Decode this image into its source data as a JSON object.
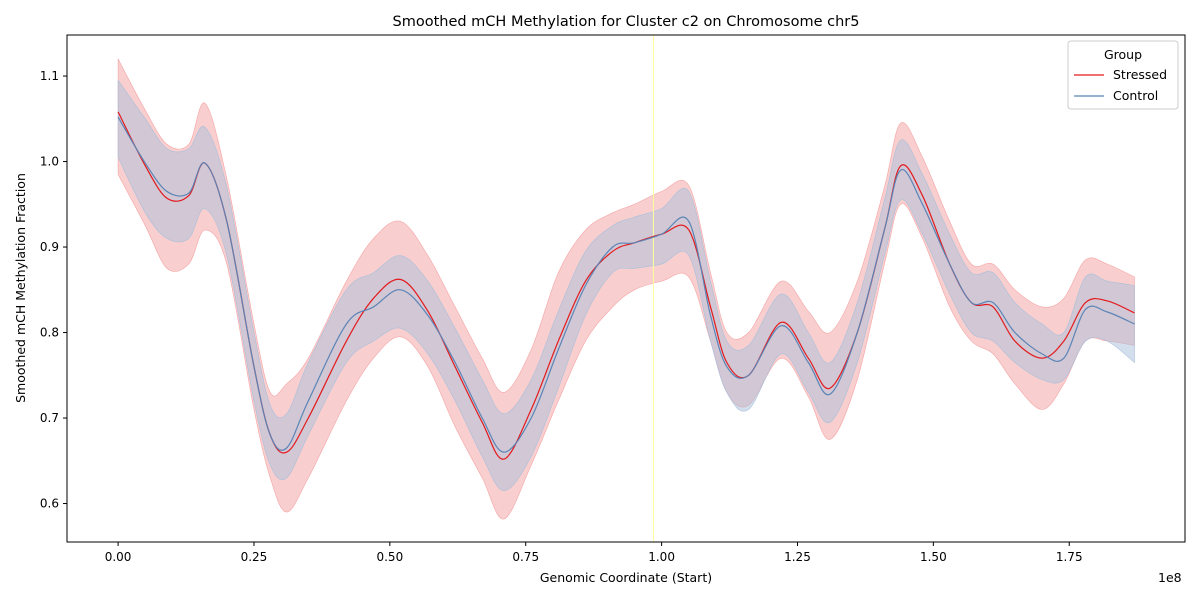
{
  "chart_data": {
    "type": "line",
    "title": "Smoothed mCH Methylation for Cluster c2 on Chromosome chr5",
    "xlabel": "Genomic Coordinate (Start)",
    "ylabel": "Smoothed mCH Methylation Fraction",
    "x_offset_label": "1e8",
    "x_scale": 100000000,
    "xlim": [
      -0.094,
      1.963
    ],
    "ylim": [
      0.555,
      1.148
    ],
    "x_ticks": [
      0.0,
      0.25,
      0.5,
      0.75,
      1.0,
      1.25,
      1.5,
      1.75
    ],
    "x_tick_labels": [
      "0.00",
      "0.25",
      "0.50",
      "0.75",
      "1.00",
      "1.25",
      "1.50",
      "1.75"
    ],
    "y_ticks": [
      0.6,
      0.7,
      0.8,
      0.9,
      1.0,
      1.1
    ],
    "y_tick_labels": [
      "0.6",
      "0.7",
      "0.8",
      "0.9",
      "1.0",
      "1.1"
    ],
    "grid": false,
    "legend_title": "Group",
    "legend_position": "top-right",
    "vline": {
      "x": 0.985,
      "color": "#ffff99"
    },
    "series": [
      {
        "name": "Stressed",
        "color": "#e41a1c",
        "band_color": "#f4a5a6",
        "x": [
          0.0,
          0.05,
          0.09,
          0.13,
          0.16,
          0.2,
          0.25,
          0.28,
          0.31,
          0.35,
          0.42,
          0.47,
          0.52,
          0.57,
          0.62,
          0.67,
          0.71,
          0.76,
          0.81,
          0.86,
          0.91,
          0.95,
          1.0,
          1.05,
          1.09,
          1.12,
          1.16,
          1.22,
          1.27,
          1.31,
          1.36,
          1.41,
          1.44,
          1.48,
          1.53,
          1.57,
          1.61,
          1.65,
          1.7,
          1.74,
          1.78,
          1.82,
          1.87
        ],
        "y": [
          1.058,
          0.995,
          0.957,
          0.96,
          0.998,
          0.93,
          0.76,
          0.68,
          0.66,
          0.7,
          0.79,
          0.84,
          0.862,
          0.825,
          0.76,
          0.695,
          0.652,
          0.71,
          0.79,
          0.86,
          0.895,
          0.905,
          0.915,
          0.92,
          0.83,
          0.765,
          0.75,
          0.812,
          0.77,
          0.735,
          0.8,
          0.92,
          0.995,
          0.96,
          0.88,
          0.835,
          0.83,
          0.79,
          0.77,
          0.79,
          0.835,
          0.837,
          0.823
        ],
        "lower": [
          0.985,
          0.925,
          0.875,
          0.88,
          0.92,
          0.88,
          0.71,
          0.63,
          0.59,
          0.63,
          0.72,
          0.77,
          0.795,
          0.76,
          0.69,
          0.63,
          0.582,
          0.645,
          0.72,
          0.79,
          0.83,
          0.85,
          0.86,
          0.865,
          0.79,
          0.73,
          0.715,
          0.77,
          0.725,
          0.675,
          0.745,
          0.88,
          0.95,
          0.91,
          0.83,
          0.79,
          0.775,
          0.74,
          0.71,
          0.74,
          0.79,
          0.79,
          0.785
        ],
        "upper": [
          1.12,
          1.06,
          1.02,
          1.02,
          1.068,
          0.98,
          0.81,
          0.73,
          0.74,
          0.77,
          0.86,
          0.91,
          0.93,
          0.89,
          0.83,
          0.77,
          0.73,
          0.78,
          0.87,
          0.92,
          0.94,
          0.95,
          0.965,
          0.972,
          0.87,
          0.8,
          0.8,
          0.86,
          0.825,
          0.8,
          0.86,
          0.97,
          1.045,
          1.005,
          0.93,
          0.88,
          0.88,
          0.85,
          0.83,
          0.84,
          0.885,
          0.88,
          0.865
        ]
      },
      {
        "name": "Control",
        "color": "#5b84b6",
        "band_color": "#a9c0dc",
        "x": [
          0.0,
          0.05,
          0.09,
          0.13,
          0.16,
          0.2,
          0.25,
          0.28,
          0.31,
          0.35,
          0.42,
          0.47,
          0.52,
          0.57,
          0.62,
          0.67,
          0.71,
          0.76,
          0.81,
          0.86,
          0.91,
          0.95,
          1.0,
          1.05,
          1.09,
          1.12,
          1.16,
          1.22,
          1.27,
          1.31,
          1.36,
          1.41,
          1.44,
          1.48,
          1.53,
          1.57,
          1.61,
          1.65,
          1.7,
          1.74,
          1.78,
          1.82,
          1.87
        ],
        "y": [
          1.052,
          0.998,
          0.965,
          0.963,
          0.998,
          0.93,
          0.76,
          0.68,
          0.665,
          0.72,
          0.81,
          0.83,
          0.85,
          0.82,
          0.765,
          0.7,
          0.66,
          0.7,
          0.78,
          0.855,
          0.9,
          0.905,
          0.915,
          0.93,
          0.82,
          0.76,
          0.75,
          0.808,
          0.765,
          0.728,
          0.8,
          0.92,
          0.99,
          0.95,
          0.88,
          0.835,
          0.835,
          0.8,
          0.775,
          0.77,
          0.827,
          0.824,
          0.81
        ],
        "lower": [
          1.005,
          0.94,
          0.91,
          0.91,
          0.945,
          0.89,
          0.72,
          0.645,
          0.63,
          0.68,
          0.765,
          0.79,
          0.805,
          0.775,
          0.72,
          0.655,
          0.615,
          0.655,
          0.735,
          0.82,
          0.87,
          0.875,
          0.88,
          0.89,
          0.79,
          0.73,
          0.71,
          0.775,
          0.73,
          0.695,
          0.765,
          0.89,
          0.955,
          0.915,
          0.845,
          0.8,
          0.79,
          0.765,
          0.745,
          0.745,
          0.79,
          0.79,
          0.765
        ],
        "upper": [
          1.095,
          1.05,
          1.015,
          1.015,
          1.04,
          0.97,
          0.8,
          0.715,
          0.705,
          0.765,
          0.85,
          0.87,
          0.89,
          0.86,
          0.805,
          0.745,
          0.705,
          0.745,
          0.825,
          0.895,
          0.925,
          0.935,
          0.945,
          0.965,
          0.86,
          0.79,
          0.785,
          0.845,
          0.8,
          0.765,
          0.835,
          0.955,
          1.025,
          0.985,
          0.915,
          0.87,
          0.87,
          0.835,
          0.81,
          0.8,
          0.865,
          0.86,
          0.855
        ]
      }
    ]
  }
}
